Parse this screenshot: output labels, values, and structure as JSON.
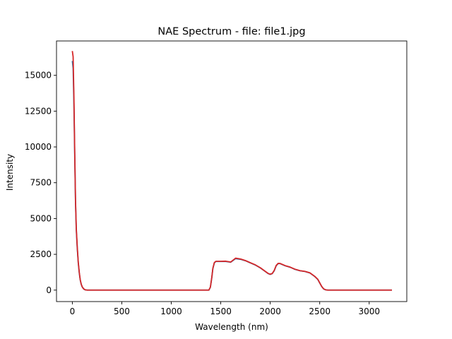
{
  "chart_data": {
    "type": "line",
    "title": "NAE Spectrum - file: file1.jpg",
    "xlabel": "Wavelength (nm)",
    "ylabel": "Intensity",
    "xlim": [
      -160,
      3380
    ],
    "ylim": [
      -800,
      17400
    ],
    "xticks": [
      0,
      500,
      1000,
      1500,
      2000,
      2500,
      3000
    ],
    "yticks": [
      0,
      2500,
      5000,
      7500,
      10000,
      12500,
      15000
    ],
    "grid": false,
    "series": [
      {
        "color": "#1f77b4",
        "x": [
          0,
          8,
          16,
          24,
          32,
          40,
          50,
          60,
          70,
          80,
          90,
          100,
          115,
          130,
          150,
          180,
          250,
          500,
          1000,
          1380,
          1395,
          1410,
          1420,
          1435,
          1450,
          1500,
          1550,
          1600,
          1650,
          1700,
          1750,
          1800,
          1850,
          1900,
          1950,
          1980,
          2000,
          2020,
          2040,
          2060,
          2080,
          2100,
          2150,
          2200,
          2250,
          2300,
          2350,
          2400,
          2450,
          2480,
          2500,
          2520,
          2540,
          2560,
          2580,
          2700,
          3000,
          3230
        ],
        "y": [
          16000,
          15500,
          13000,
          9500,
          6200,
          4200,
          2900,
          1900,
          1200,
          700,
          400,
          220,
          80,
          20,
          0,
          0,
          0,
          0,
          0,
          0,
          200,
          900,
          1500,
          1900,
          2000,
          2000,
          2000,
          1950,
          2200,
          2150,
          2050,
          1900,
          1750,
          1550,
          1300,
          1150,
          1100,
          1150,
          1350,
          1700,
          1850,
          1850,
          1700,
          1600,
          1450,
          1350,
          1300,
          1200,
          950,
          750,
          500,
          250,
          80,
          20,
          0,
          0,
          0,
          0
        ]
      },
      {
        "color": "#d62728",
        "x": [
          0,
          8,
          16,
          24,
          32,
          40,
          50,
          60,
          70,
          80,
          90,
          100,
          115,
          130,
          150,
          180,
          250,
          500,
          1000,
          1380,
          1395,
          1410,
          1420,
          1435,
          1450,
          1500,
          1550,
          1600,
          1650,
          1700,
          1750,
          1800,
          1850,
          1900,
          1950,
          1980,
          2000,
          2020,
          2040,
          2060,
          2080,
          2100,
          2150,
          2200,
          2250,
          2300,
          2350,
          2400,
          2450,
          2480,
          2500,
          2520,
          2540,
          2560,
          2580,
          2700,
          3000,
          3230
        ],
        "y": [
          16700,
          16300,
          13500,
          9700,
          6300,
          4300,
          3000,
          1950,
          1250,
          720,
          410,
          230,
          85,
          22,
          0,
          0,
          0,
          0,
          0,
          0,
          210,
          920,
          1520,
          1920,
          2010,
          2010,
          2020,
          1960,
          2230,
          2170,
          2060,
          1910,
          1760,
          1560,
          1310,
          1160,
          1110,
          1160,
          1370,
          1720,
          1870,
          1860,
          1710,
          1610,
          1460,
          1360,
          1310,
          1210,
          960,
          760,
          510,
          260,
          85,
          22,
          0,
          0,
          0,
          0
        ]
      }
    ]
  }
}
